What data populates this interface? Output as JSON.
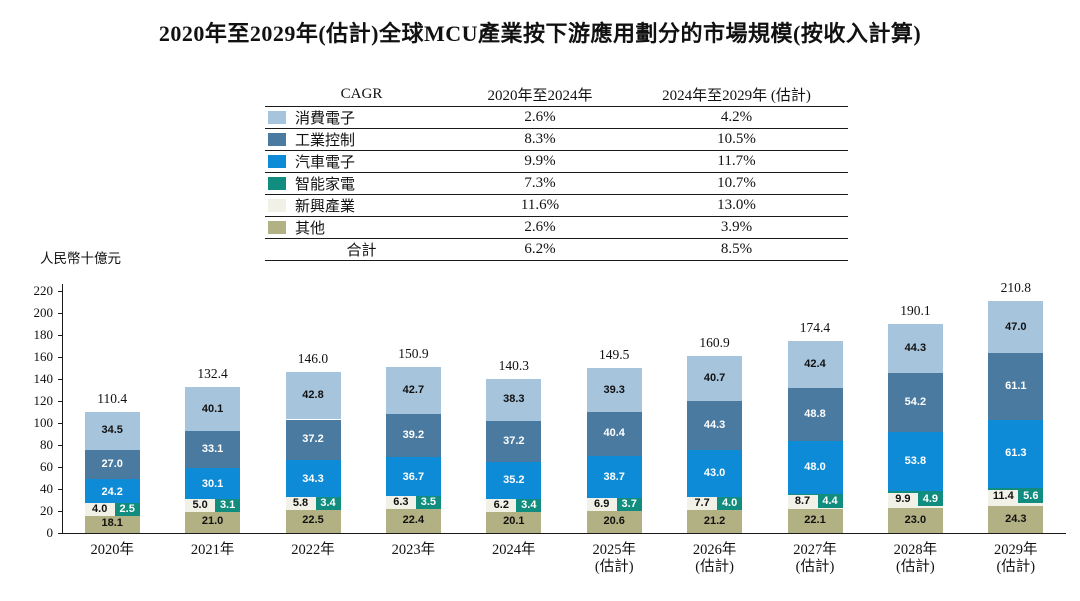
{
  "title": "2020年至2029年(估計)全球MCU產業按下游應用劃分的市場規模(按收入計算)",
  "cagr_table": {
    "header": {
      "col1": "CAGR",
      "col2": "2020年至2024年",
      "col3": "2024年至2029年 (估計)"
    },
    "rows": [
      {
        "label": "消費電子",
        "color": "#a7c4dd",
        "cagr_2020_2024": "2.6%",
        "cagr_2024_2029": "4.2%"
      },
      {
        "label": "工業控制",
        "color": "#4a7aa0",
        "cagr_2020_2024": "8.3%",
        "cagr_2024_2029": "10.5%"
      },
      {
        "label": "汽車電子",
        "color": "#0e8bd6",
        "cagr_2020_2024": "9.9%",
        "cagr_2024_2029": "11.7%"
      },
      {
        "label": "智能家電",
        "color": "#108d7f",
        "cagr_2020_2024": "7.3%",
        "cagr_2024_2029": "10.7%"
      },
      {
        "label": "新興產業",
        "color": "#f2f1e8",
        "cagr_2020_2024": "11.6%",
        "cagr_2024_2029": "13.0%"
      },
      {
        "label": "其他",
        "color": "#b2b184",
        "cagr_2020_2024": "2.6%",
        "cagr_2024_2029": "3.9%"
      }
    ],
    "total_row": {
      "label": "合計",
      "cagr_2020_2024": "6.2%",
      "cagr_2024_2029": "8.5%"
    }
  },
  "chart_data": {
    "type": "bar",
    "stacked": true,
    "title": "2020年至2029年(估計)全球MCU產業按下游應用劃分的市場規模(按收入計算)",
    "ylabel": "人民幣十億元",
    "ylim": [
      0,
      220
    ],
    "ytick_step": 20,
    "grid": false,
    "legend_position": "top-table",
    "categories": [
      "2020年",
      "2021年",
      "2022年",
      "2023年",
      "2024年",
      "2025年",
      "2026年",
      "2027年",
      "2028年",
      "2029年"
    ],
    "category_sublabels": [
      "",
      "",
      "",
      "",
      "",
      "(估計)",
      "(估計)",
      "(估計)",
      "(估計)",
      "(估計)"
    ],
    "series_order": "bottom-to-top",
    "series": [
      {
        "key": "others",
        "name": "其他",
        "color": "#b2b184",
        "text_color": "#111111",
        "label_mode": "center",
        "values": [
          18.1,
          21.0,
          22.5,
          22.4,
          20.1,
          20.6,
          21.2,
          22.1,
          23.0,
          24.3
        ]
      },
      {
        "key": "emerging",
        "name": "新興產業",
        "color": "#f2f1e8",
        "text_color": "#111111",
        "label_mode": "chip-left",
        "values": [
          4.0,
          5.0,
          5.8,
          6.3,
          6.2,
          6.9,
          7.7,
          8.7,
          9.9,
          11.4
        ]
      },
      {
        "key": "smart-appliance",
        "name": "智能家電",
        "color": "#108d7f",
        "text_color": "#ffffff",
        "label_mode": "chip-right",
        "values": [
          2.5,
          3.1,
          3.4,
          3.5,
          3.4,
          3.7,
          4.0,
          4.4,
          4.9,
          5.6
        ]
      },
      {
        "key": "automotive",
        "name": "汽車電子",
        "color": "#0e8bd6",
        "text_color": "#ffffff",
        "label_mode": "center",
        "values": [
          24.2,
          30.1,
          34.3,
          36.7,
          35.2,
          38.7,
          43.0,
          48.0,
          53.8,
          61.3
        ]
      },
      {
        "key": "industrial",
        "name": "工業控制",
        "color": "#4a7aa0",
        "text_color": "#ffffff",
        "label_mode": "center",
        "values": [
          27.0,
          33.1,
          37.2,
          39.2,
          37.2,
          40.4,
          44.3,
          48.8,
          54.2,
          61.1
        ]
      },
      {
        "key": "consumer",
        "name": "消費電子",
        "color": "#a7c4dd",
        "text_color": "#111111",
        "label_mode": "center",
        "values": [
          34.5,
          40.1,
          42.8,
          42.7,
          38.3,
          39.3,
          40.7,
          42.4,
          44.3,
          47.0
        ]
      }
    ],
    "totals": [
      110.4,
      132.4,
      146.0,
      150.9,
      140.3,
      149.5,
      160.9,
      174.4,
      190.1,
      210.8
    ]
  }
}
